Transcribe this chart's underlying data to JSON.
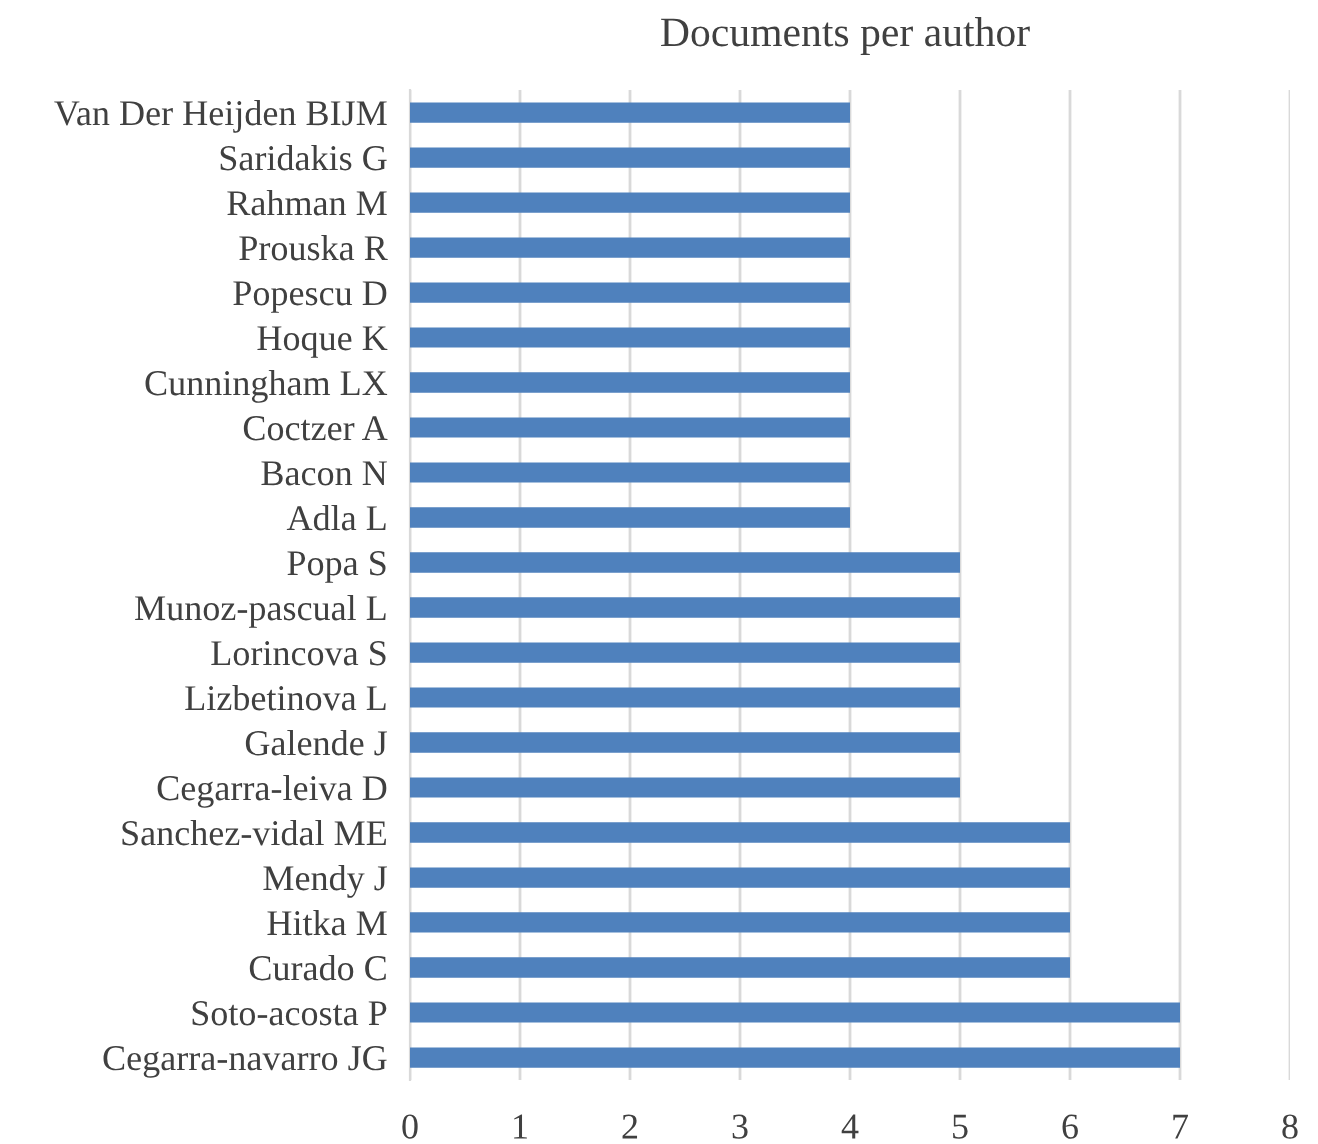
{
  "chart_data": {
    "type": "bar",
    "orientation": "horizontal",
    "title": "Documents per author",
    "categories": [
      "Van Der Heijden BIJM",
      "Saridakis G",
      "Rahman M",
      "Prouska R",
      "Popescu D",
      "Hoque K",
      "Cunningham LX",
      "Coctzer A",
      "Bacon N",
      "Adla L",
      "Popa S",
      "Munoz-pascual L",
      "Lorincova S",
      "Lizbetinova L",
      "Galende J",
      "Cegarra-leiva D",
      "Sanchez-vidal ME",
      "Mendy J",
      "Hitka M",
      "Curado C",
      "Soto-acosta P",
      "Cegarra-navarro JG"
    ],
    "values": [
      4,
      4,
      4,
      4,
      4,
      4,
      4,
      4,
      4,
      4,
      5,
      5,
      5,
      5,
      5,
      5,
      6,
      6,
      6,
      6,
      7,
      7
    ],
    "color": "#4f81bd",
    "xlim": [
      0,
      8
    ],
    "xticks": [
      0,
      1,
      2,
      3,
      4,
      5,
      6,
      7,
      8
    ],
    "grid": "x",
    "legend": false
  }
}
